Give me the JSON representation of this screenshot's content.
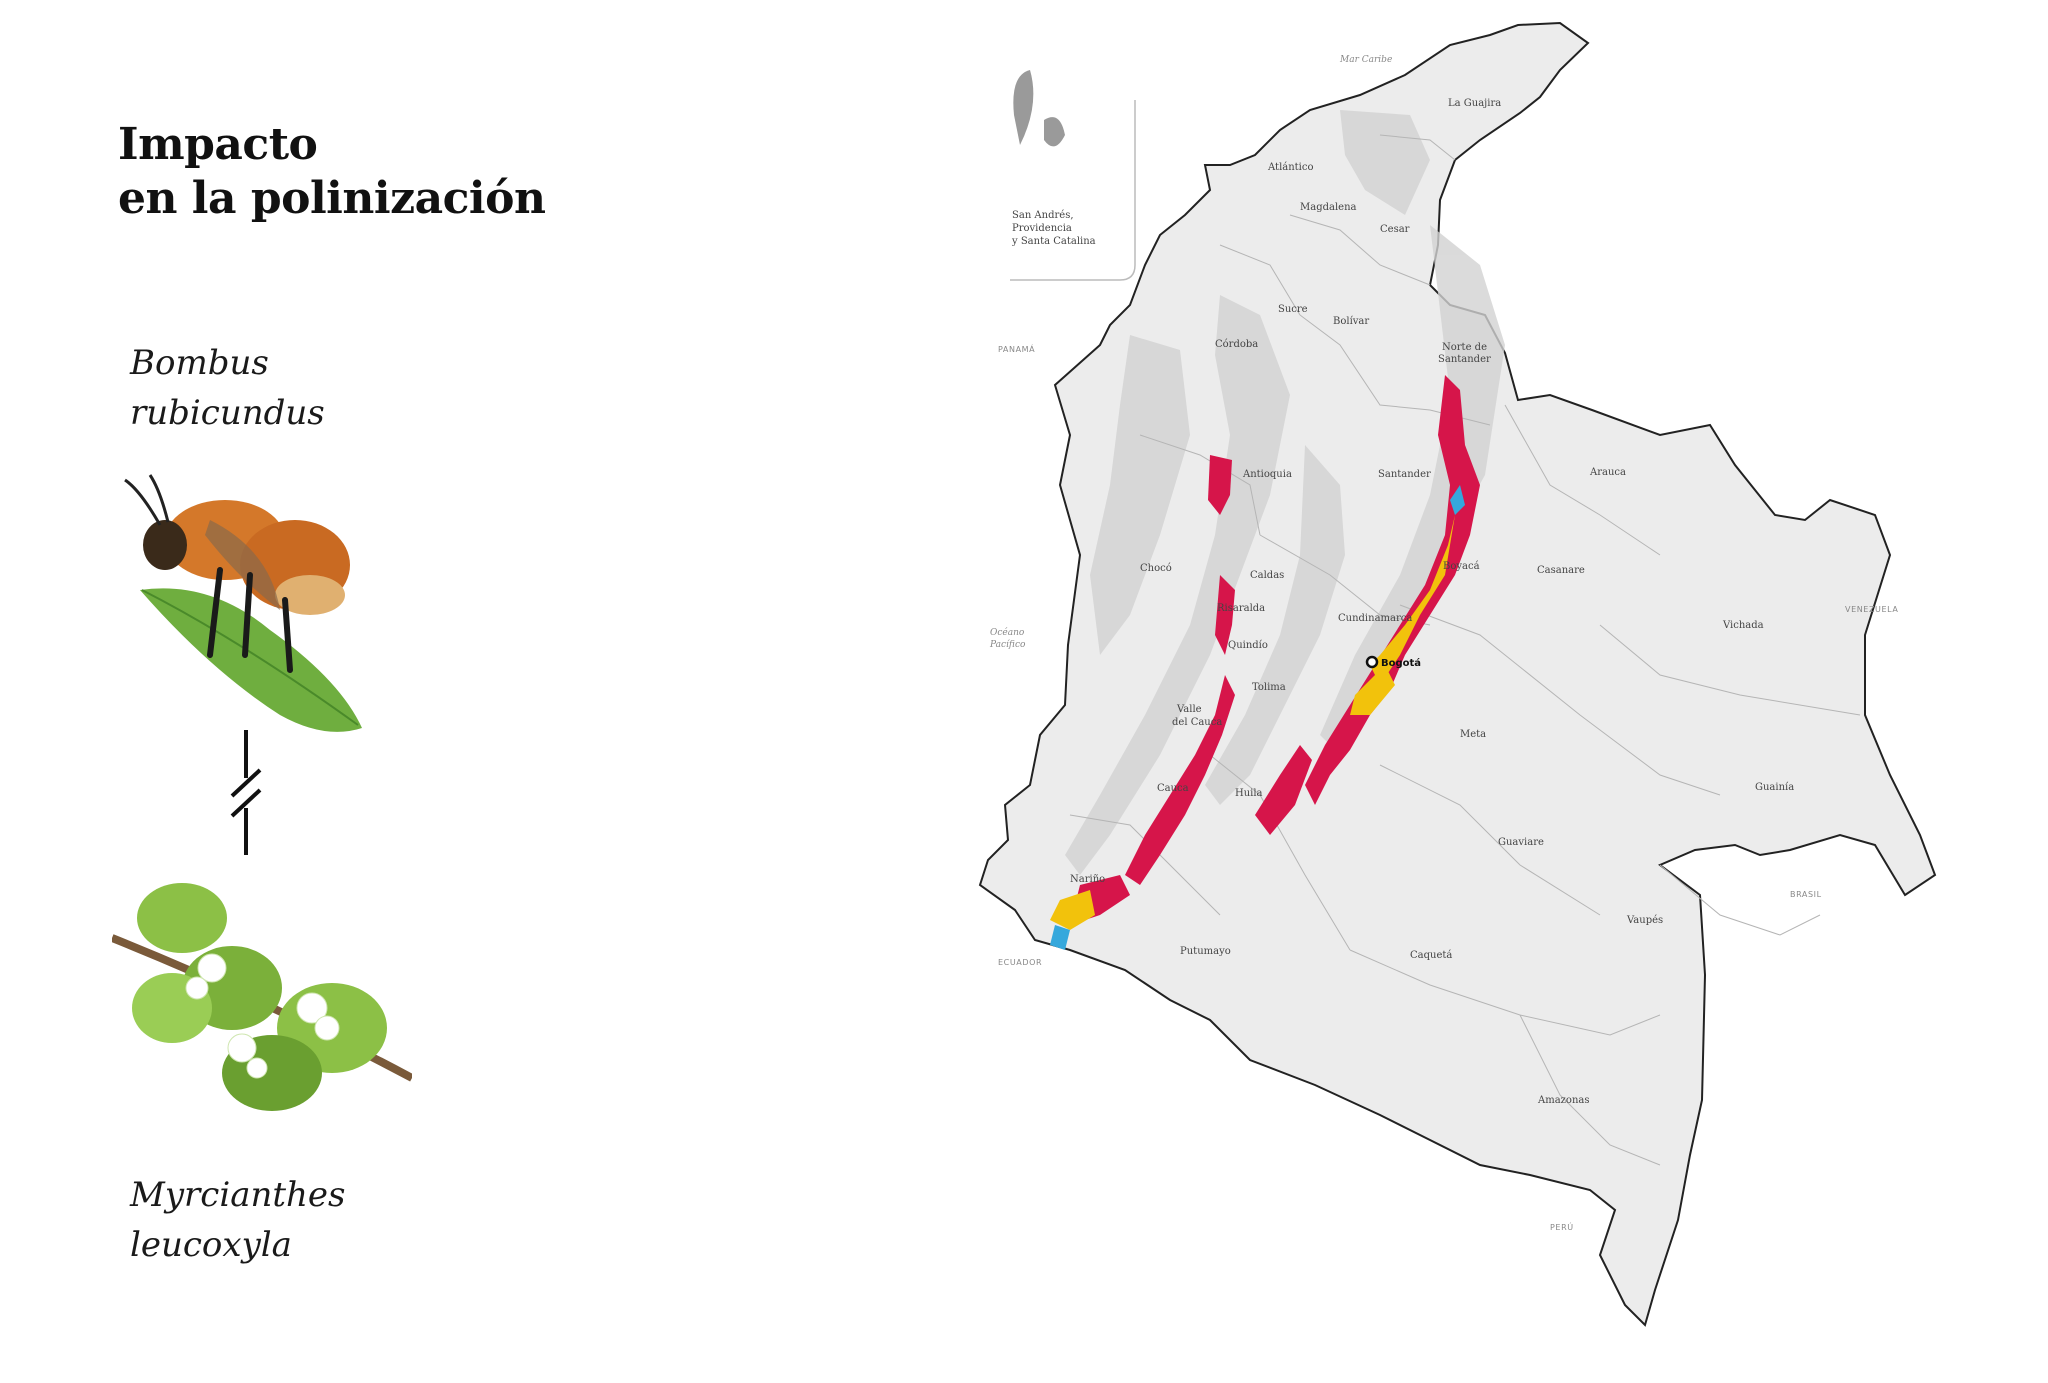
{
  "title": {
    "line1": "Impacto",
    "line2": "en la polinización"
  },
  "species_1": {
    "line1": "Bombus",
    "line2": "rubicundus",
    "illustration": "bumblebee-illustration"
  },
  "species_2": {
    "line1": "Myrcianthes",
    "line2": "leucoxyla",
    "illustration": "myrcianthes-branch-illustration"
  },
  "interaction_symbol": "broken-link-symbol",
  "map": {
    "inset": {
      "line1": "San Andrés,",
      "line2": "Providencia",
      "line3": "y Santa Catalina"
    },
    "sea_labels": {
      "caribbean": "Mar Caribe",
      "pacific_1": "Océano",
      "pacific_2": "Pacífico"
    },
    "countries": {
      "panama": "PANAMÁ",
      "venezuela": "VENEZUELA",
      "brasil": "BRASIL",
      "peru": "PERÚ",
      "ecuador": "ECUADOR"
    },
    "capital": "Bogotá",
    "departments": {
      "la_guajira": "La Guajira",
      "atlantico": "Atlántico",
      "magdalena": "Magdalena",
      "cesar": "Cesar",
      "sucre": "Sucre",
      "bolivar": "Bolívar",
      "cordoba": "Córdoba",
      "norte_santander_1": "Norte de",
      "norte_santander_2": "Santander",
      "antioquia": "Antioquia",
      "santander": "Santander",
      "arauca": "Arauca",
      "choco": "Chocó",
      "caldas": "Caldas",
      "boyaca": "Boyacá",
      "casanare": "Casanare",
      "risaralda": "Risaralda",
      "cundinamarca": "Cundinamarca",
      "vichada": "Vichada",
      "quindio": "Quindío",
      "tolima": "Tolima",
      "valle_1": "Valle",
      "valle_2": "del Cauca",
      "meta": "Meta",
      "cauca": "Cauca",
      "huila": "Huila",
      "guainia": "Guainía",
      "guaviare": "Guaviare",
      "narino": "Nariño",
      "vaupes": "Vaupés",
      "putumayo": "Putumayo",
      "caqueta": "Caquetá",
      "amazonas": "Amazonas"
    },
    "colors": {
      "land": "#ececec",
      "relief": "#d2d2d2",
      "border": "#222222",
      "internal_border": "#b5b5b5",
      "impact_red": "#d6154a",
      "impact_yellow": "#f2c20c",
      "impact_blue": "#35a8dc"
    }
  }
}
